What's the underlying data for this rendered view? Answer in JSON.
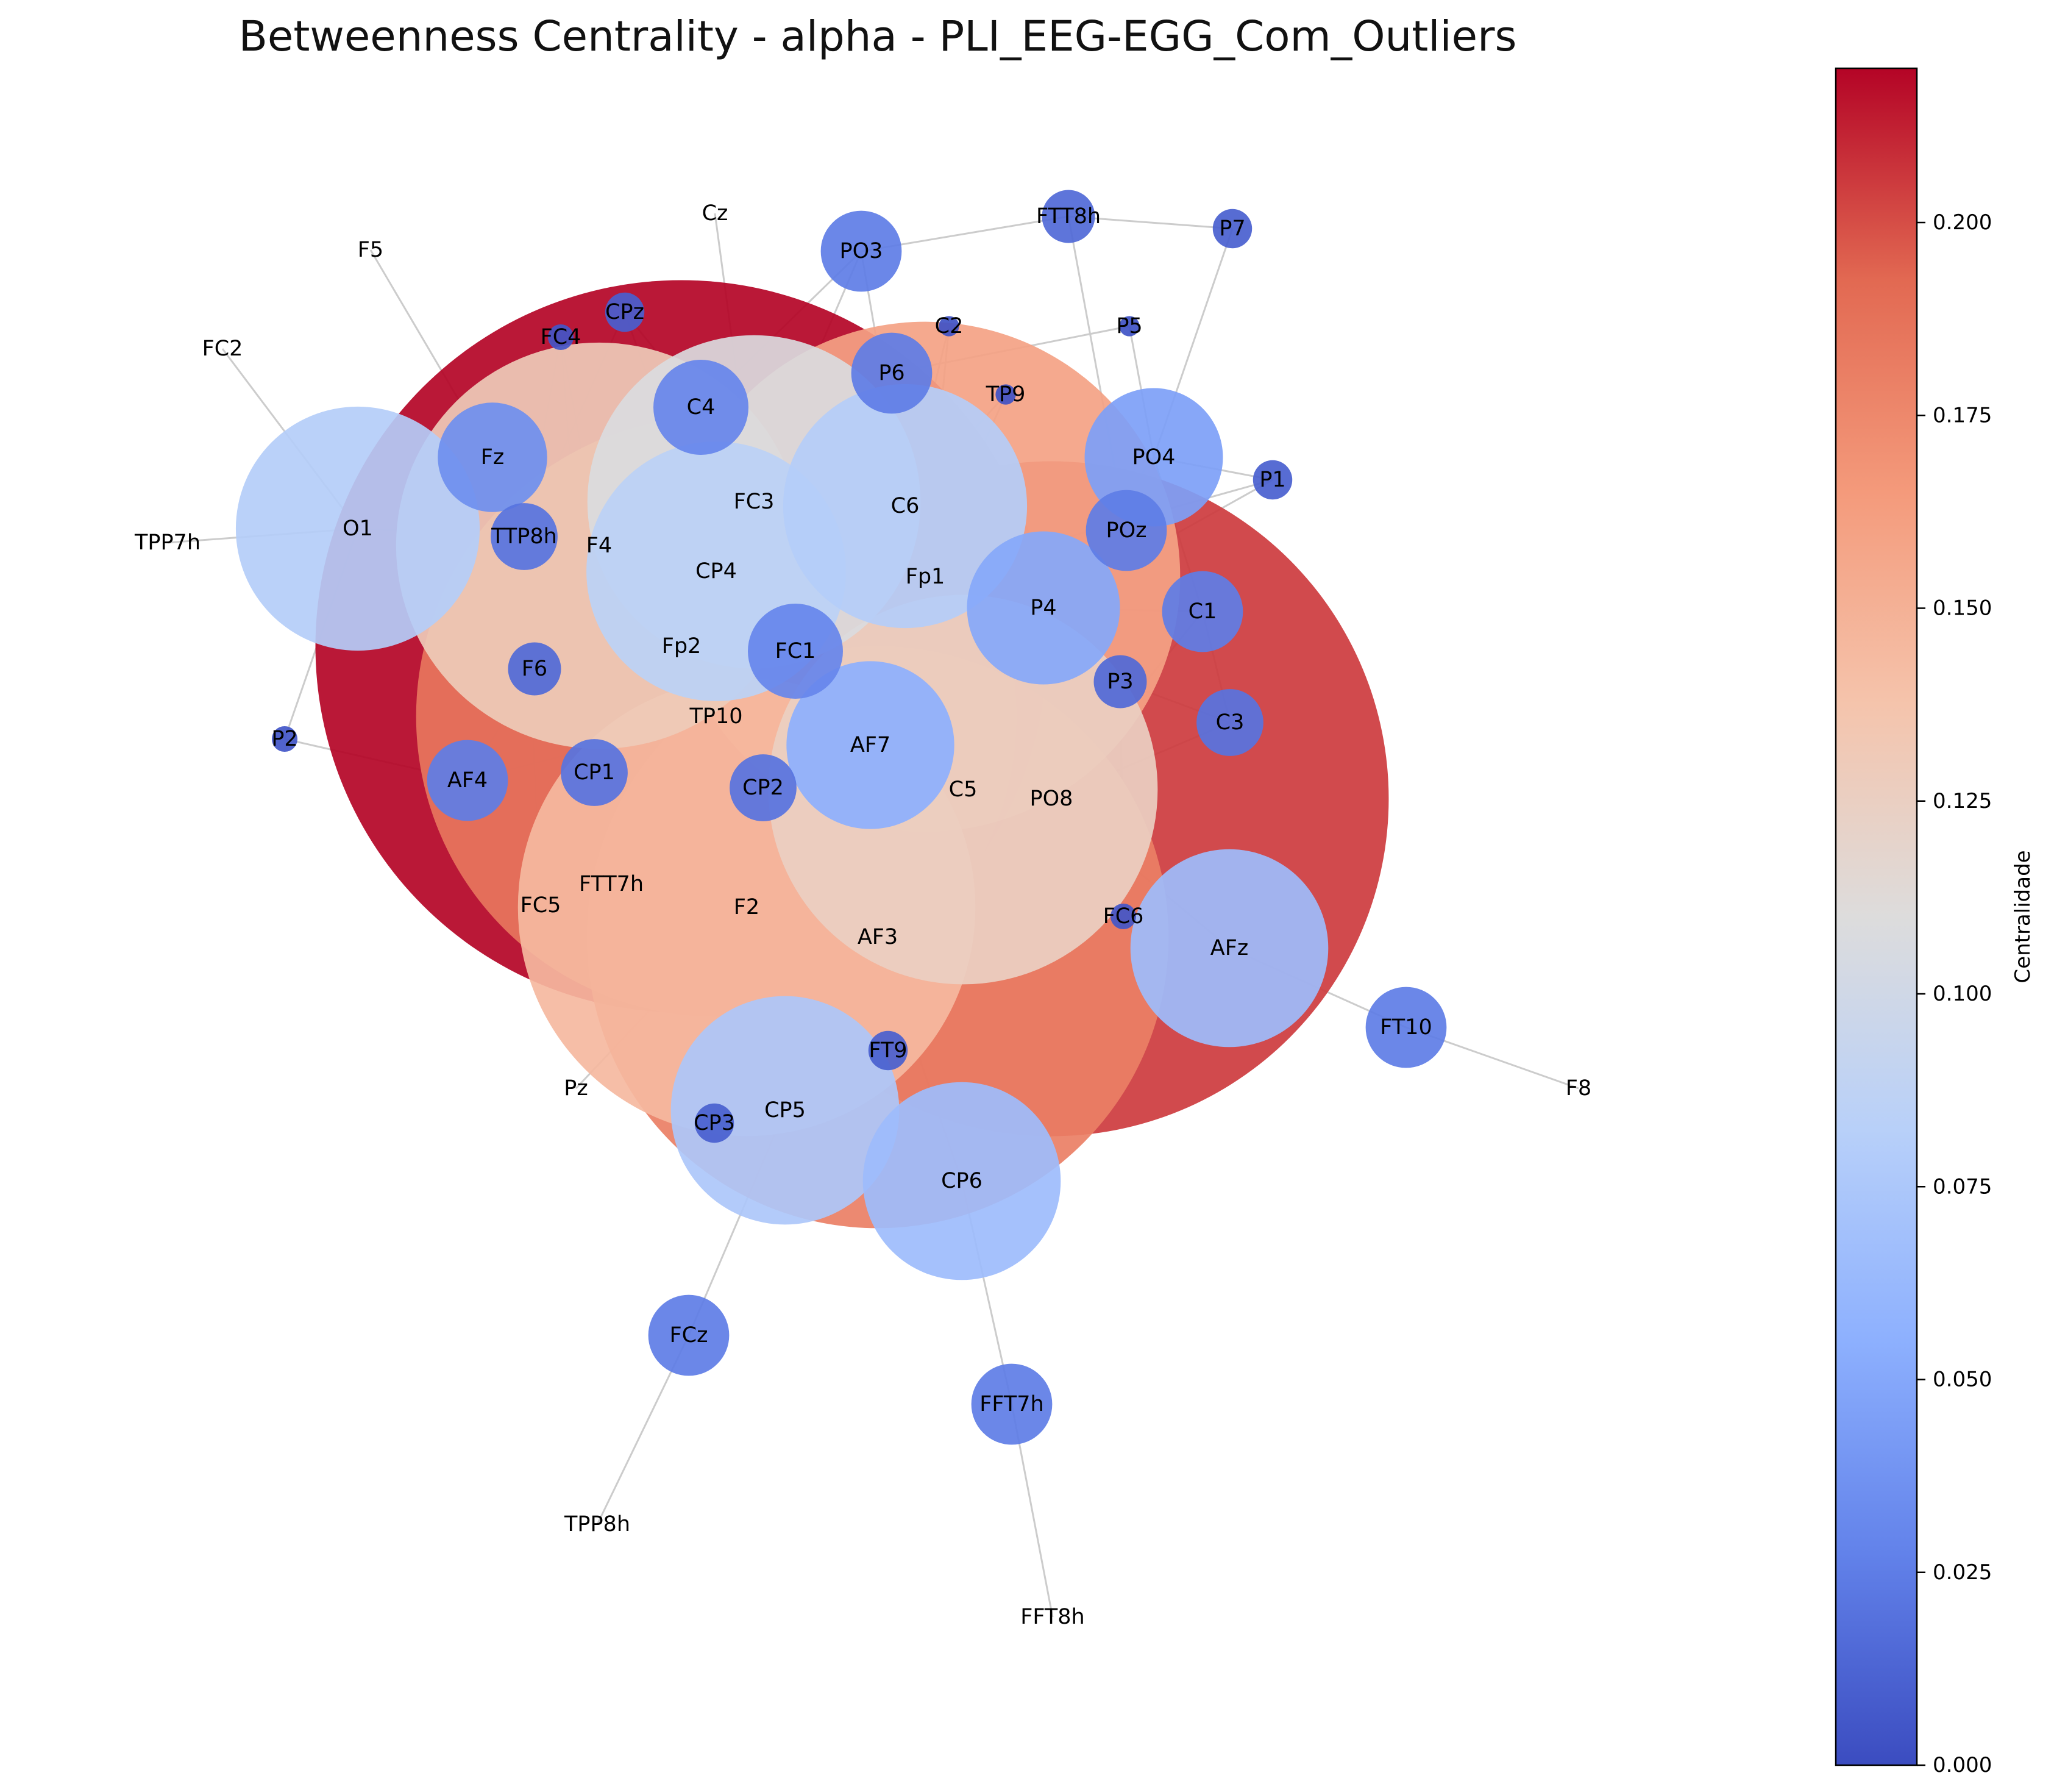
{
  "title": "Betweenness Centrality - alpha - PLI_EEG-EGG_Com_Outliers",
  "colorbar": {
    "label": "Centralidade",
    "min": 0.0,
    "max": 0.22,
    "ticks": [
      "0.000",
      "0.025",
      "0.050",
      "0.075",
      "0.100",
      "0.125",
      "0.150",
      "0.175",
      "0.200"
    ],
    "colormap": "coolwarm",
    "colormap_stops": [
      "#3b4cc0",
      "#6282ea",
      "#8db0fe",
      "#b8d0f9",
      "#dddcdc",
      "#f5c4ac",
      "#f49a7b",
      "#e26952",
      "#b40426"
    ]
  },
  "edge_color": "#cccccc",
  "label_color": "#000000",
  "nodes": [
    {
      "id": "Fp2",
      "value": 0.22
    },
    {
      "id": "PO8",
      "value": 0.205
    },
    {
      "id": "TP10",
      "value": 0.185
    },
    {
      "id": "AF3",
      "value": 0.18
    },
    {
      "id": "Fp1",
      "value": 0.16
    },
    {
      "id": "F2",
      "value": 0.145
    },
    {
      "id": "F4",
      "value": 0.13
    },
    {
      "id": "C5",
      "value": 0.125
    },
    {
      "id": "FC3",
      "value": 0.108
    },
    {
      "id": "CP4",
      "value": 0.085
    },
    {
      "id": "C6",
      "value": 0.08
    },
    {
      "id": "O1",
      "value": 0.08
    },
    {
      "id": "CP5",
      "value": 0.075
    },
    {
      "id": "CP6",
      "value": 0.065
    },
    {
      "id": "AFz",
      "value": 0.065
    },
    {
      "id": "AF7",
      "value": 0.055
    },
    {
      "id": "P4",
      "value": 0.05
    },
    {
      "id": "PO4",
      "value": 0.045
    },
    {
      "id": "FC1",
      "value": 0.03
    },
    {
      "id": "C4",
      "value": 0.03
    },
    {
      "id": "Fz",
      "value": 0.035
    },
    {
      "id": "FCz",
      "value": 0.025
    },
    {
      "id": "FFT7h",
      "value": 0.025
    },
    {
      "id": "FT10",
      "value": 0.025
    },
    {
      "id": "PO3",
      "value": 0.025
    },
    {
      "id": "P6",
      "value": 0.025
    },
    {
      "id": "AF4",
      "value": 0.025
    },
    {
      "id": "C1",
      "value": 0.025
    },
    {
      "id": "POz",
      "value": 0.025
    },
    {
      "id": "CP1",
      "value": 0.02
    },
    {
      "id": "CP2",
      "value": 0.02
    },
    {
      "id": "TTP8h",
      "value": 0.02
    },
    {
      "id": "C3",
      "value": 0.02
    },
    {
      "id": "FTT8h",
      "value": 0.015
    },
    {
      "id": "P3",
      "value": 0.015
    },
    {
      "id": "F6",
      "value": 0.015
    },
    {
      "id": "CPz",
      "value": 0.01
    },
    {
      "id": "CP3",
      "value": 0.01
    },
    {
      "id": "FT9",
      "value": 0.01
    },
    {
      "id": "P7",
      "value": 0.01
    },
    {
      "id": "P1",
      "value": 0.01
    },
    {
      "id": "P2",
      "value": 0.005
    },
    {
      "id": "FC4",
      "value": 0.005
    },
    {
      "id": "FC6",
      "value": 0.005
    },
    {
      "id": "C2",
      "value": 0.003
    },
    {
      "id": "P5",
      "value": 0.003
    },
    {
      "id": "TP9",
      "value": 0.003
    },
    {
      "id": "Cz",
      "value": 0.0
    },
    {
      "id": "F5",
      "value": 0.0
    },
    {
      "id": "FC2",
      "value": 0.0
    },
    {
      "id": "TPP7h",
      "value": 0.0
    },
    {
      "id": "FC5",
      "value": 0.0
    },
    {
      "id": "FTT7h",
      "value": 0.0
    },
    {
      "id": "Pz",
      "value": 0.0
    },
    {
      "id": "F8",
      "value": 0.0
    },
    {
      "id": "TPP8h",
      "value": 0.0
    },
    {
      "id": "FFT8h",
      "value": 0.0
    }
  ],
  "edges": [
    [
      "FC2",
      "O1"
    ],
    [
      "TPP7h",
      "O1"
    ],
    [
      "O1",
      "P2"
    ],
    [
      "O1",
      "TTP8h"
    ],
    [
      "F5",
      "Fz"
    ],
    [
      "Fz",
      "F4"
    ],
    [
      "P2",
      "AF4"
    ],
    [
      "AF4",
      "F6"
    ],
    [
      "AF4",
      "TP10"
    ],
    [
      "FC4",
      "TTP8h"
    ],
    [
      "FC4",
      "F4"
    ],
    [
      "FC4",
      "CP1"
    ],
    [
      "CPz",
      "C4"
    ],
    [
      "CPz",
      "TTP8h"
    ],
    [
      "CPz",
      "CP4"
    ],
    [
      "Cz",
      "FC3"
    ],
    [
      "FC3",
      "CP2"
    ],
    [
      "FC3",
      "F6"
    ],
    [
      "FC3",
      "Fp2"
    ],
    [
      "FC3",
      "PO3"
    ],
    [
      "FC3",
      "AF7"
    ],
    [
      "FC3",
      "FC1"
    ],
    [
      "C4",
      "PO3"
    ],
    [
      "C4",
      "CP4"
    ],
    [
      "C4",
      "F4"
    ],
    [
      "PO3",
      "FTT8h"
    ],
    [
      "PO3",
      "C6"
    ],
    [
      "FTT8h",
      "P7"
    ],
    [
      "FTT8h",
      "POz"
    ],
    [
      "P7",
      "PO4"
    ],
    [
      "P5",
      "P6"
    ],
    [
      "P5",
      "PO4"
    ],
    [
      "C2",
      "C6"
    ],
    [
      "C2",
      "Fp1"
    ],
    [
      "TP9",
      "C6"
    ],
    [
      "TP9",
      "Fp1"
    ],
    [
      "P6",
      "C6"
    ],
    [
      "P6",
      "Fp2"
    ],
    [
      "P6",
      "Fp1"
    ],
    [
      "PO4",
      "P1"
    ],
    [
      "PO4",
      "C1"
    ],
    [
      "PO4",
      "P4"
    ],
    [
      "P1",
      "P4"
    ],
    [
      "P1",
      "Fp1"
    ],
    [
      "POz",
      "C5"
    ],
    [
      "POz",
      "P4"
    ],
    [
      "C6",
      "P3"
    ],
    [
      "C6",
      "F6"
    ],
    [
      "TTP8h",
      "F4"
    ],
    [
      "TTP8h",
      "CP1"
    ],
    [
      "TTP8h",
      "FC5"
    ],
    [
      "F4",
      "Fp2"
    ],
    [
      "F4",
      "CP4"
    ],
    [
      "F4",
      "FC3"
    ],
    [
      "CP4",
      "Fp1"
    ],
    [
      "CP4",
      "FC1"
    ],
    [
      "CP4",
      "TP10"
    ],
    [
      "Fp1",
      "FC1"
    ],
    [
      "Fp1",
      "P4"
    ],
    [
      "Fp1",
      "PO8"
    ],
    [
      "P4",
      "C1"
    ],
    [
      "P4",
      "C5"
    ],
    [
      "P4",
      "P3"
    ],
    [
      "C1",
      "PO8"
    ],
    [
      "C1",
      "C3"
    ],
    [
      "F6",
      "Fp2"
    ],
    [
      "Fp2",
      "FC1"
    ],
    [
      "Fp2",
      "TP10"
    ],
    [
      "Fp2",
      "AF3"
    ],
    [
      "Fp2",
      "CP1"
    ],
    [
      "Fp2",
      "FTT7h"
    ],
    [
      "FC1",
      "AF7"
    ],
    [
      "FC1",
      "TP10"
    ],
    [
      "P3",
      "C3"
    ],
    [
      "P3",
      "FC6"
    ],
    [
      "TP10",
      "F2"
    ],
    [
      "TP10",
      "FC5"
    ],
    [
      "TP10",
      "CP2"
    ],
    [
      "AF7",
      "AF3"
    ],
    [
      "AF7",
      "C5"
    ],
    [
      "C5",
      "F2"
    ],
    [
      "C5",
      "PO8"
    ],
    [
      "PO8",
      "AF3"
    ],
    [
      "PO8",
      "C3"
    ],
    [
      "PO8",
      "AFz"
    ],
    [
      "CP2",
      "AF3"
    ],
    [
      "F2",
      "CP1"
    ],
    [
      "F2",
      "Pz"
    ],
    [
      "F2",
      "CP3"
    ],
    [
      "F2",
      "CP5"
    ],
    [
      "AF3",
      "FT9"
    ],
    [
      "AF3",
      "CP5"
    ],
    [
      "AF3",
      "CP6"
    ],
    [
      "FT9",
      "CP5"
    ],
    [
      "CP5",
      "FCz"
    ],
    [
      "FCz",
      "TPP8h"
    ],
    [
      "CP6",
      "FFT7h"
    ],
    [
      "FFT7h",
      "FFT8h"
    ],
    [
      "AFz",
      "FT10"
    ],
    [
      "FT10",
      "F8"
    ]
  ]
}
